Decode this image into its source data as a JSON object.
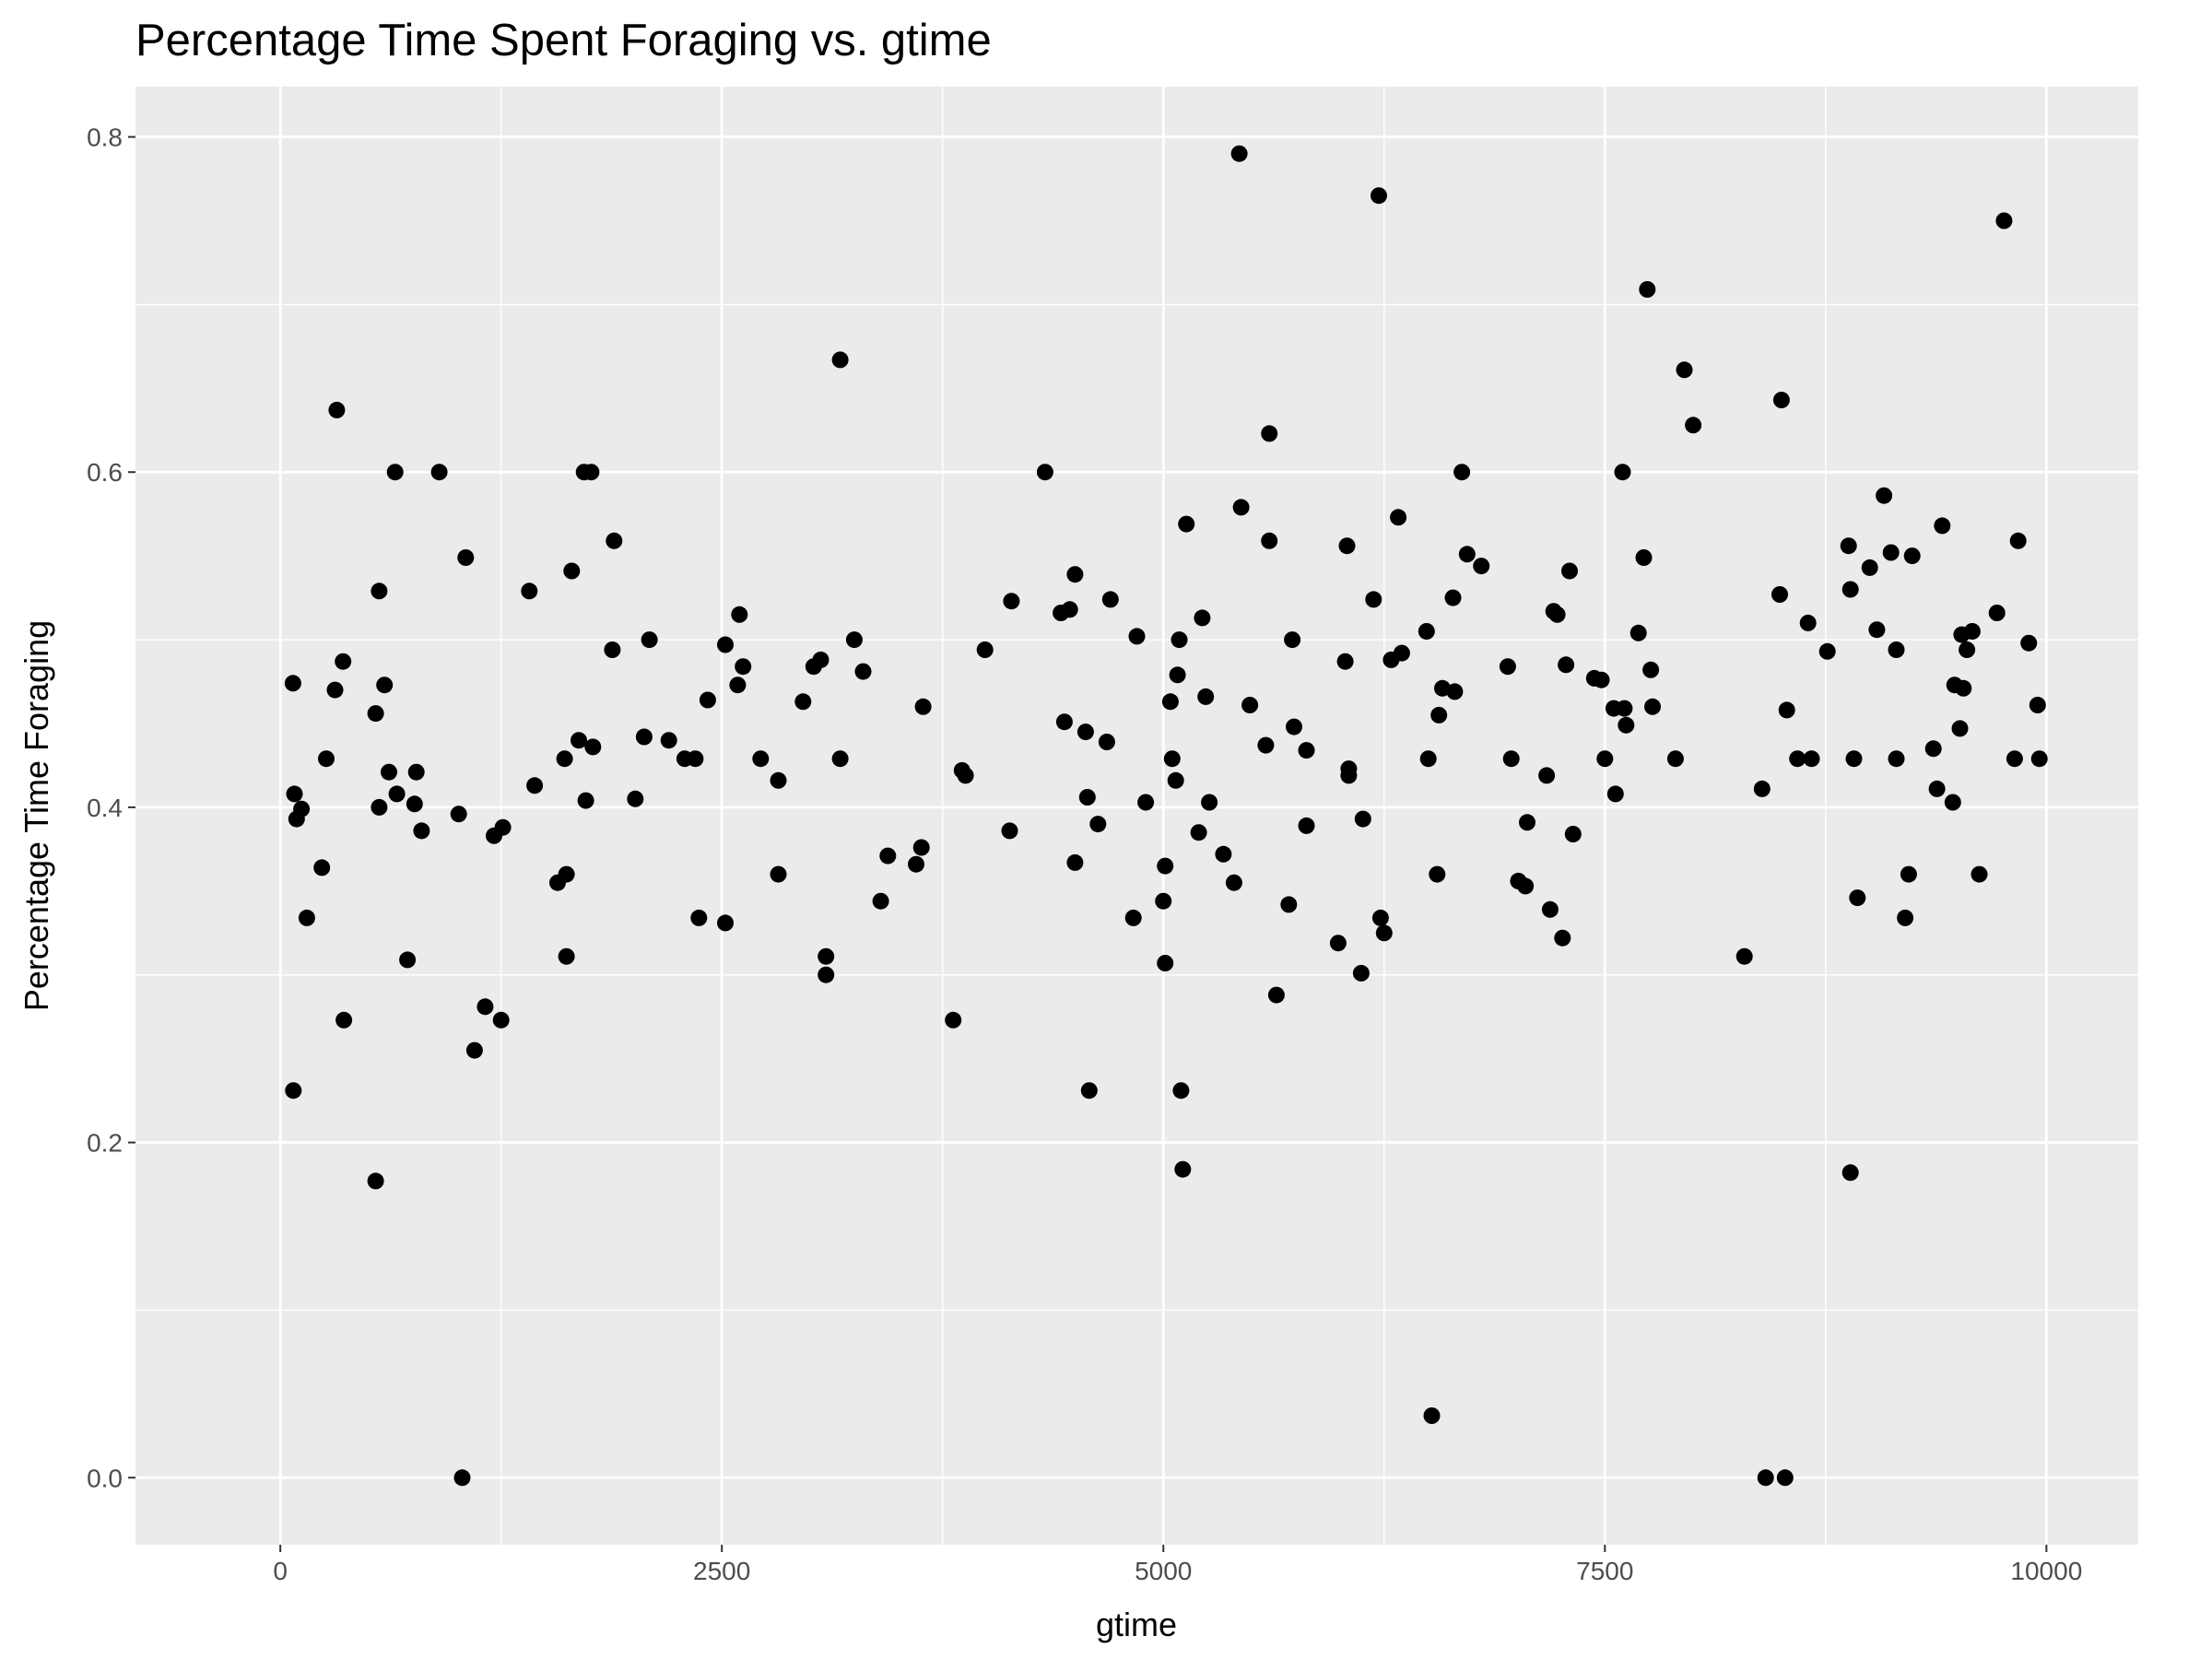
{
  "chart_data": {
    "type": "scatter",
    "title": "Percentage Time Spent Foraging vs. gtime",
    "xlabel": "gtime",
    "ylabel": "Percentage Time Foraging",
    "xlim": [
      -820,
      10520
    ],
    "ylim": [
      -0.04,
      0.83
    ],
    "x_ticks": [
      0,
      2500,
      5000,
      7500,
      10000
    ],
    "x_tick_labels": [
      "0",
      "2500",
      "5000",
      "7500",
      "10000"
    ],
    "y_ticks": [
      0.0,
      0.2,
      0.4,
      0.6,
      0.8
    ],
    "y_tick_labels": [
      "0.0",
      "0.2",
      "0.4",
      "0.6",
      "0.8"
    ],
    "grid": true,
    "panel_color": "#ebebeb",
    "grid_color": "#ffffff",
    "point_color": "#000000",
    "points": [
      [
        72,
        0.474
      ],
      [
        80,
        0.408
      ],
      [
        92,
        0.393
      ],
      [
        120,
        0.399
      ],
      [
        150,
        0.334
      ],
      [
        74,
        0.231
      ],
      [
        235,
        0.364
      ],
      [
        260,
        0.429
      ],
      [
        310,
        0.47
      ],
      [
        320,
        0.637
      ],
      [
        355,
        0.487
      ],
      [
        360,
        0.273
      ],
      [
        540,
        0.456
      ],
      [
        560,
        0.529
      ],
      [
        560,
        0.4
      ],
      [
        590,
        0.473
      ],
      [
        615,
        0.421
      ],
      [
        650,
        0.6
      ],
      [
        660,
        0.408
      ],
      [
        720,
        0.309
      ],
      [
        760,
        0.402
      ],
      [
        770,
        0.421
      ],
      [
        800,
        0.386
      ],
      [
        540,
        0.177
      ],
      [
        900,
        0.6
      ],
      [
        1010,
        0.396
      ],
      [
        1050,
        0.549
      ],
      [
        1100,
        0.255
      ],
      [
        1160,
        0.281
      ],
      [
        1210,
        0.383
      ],
      [
        1260,
        0.388
      ],
      [
        1250,
        0.273
      ],
      [
        1030,
        0.0
      ],
      [
        1410,
        0.529
      ],
      [
        1440,
        0.413
      ],
      [
        1570,
        0.355
      ],
      [
        1610,
        0.429
      ],
      [
        1620,
        0.36
      ],
      [
        1620,
        0.311
      ],
      [
        1650,
        0.541
      ],
      [
        1690,
        0.44
      ],
      [
        1720,
        0.6
      ],
      [
        1760,
        0.6
      ],
      [
        1730,
        0.404
      ],
      [
        1770,
        0.436
      ],
      [
        1880,
        0.494
      ],
      [
        1890,
        0.559
      ],
      [
        2010,
        0.405
      ],
      [
        2060,
        0.442
      ],
      [
        2090,
        0.5
      ],
      [
        2200,
        0.44
      ],
      [
        2290,
        0.429
      ],
      [
        2350,
        0.429
      ],
      [
        2370,
        0.334
      ],
      [
        2420,
        0.464
      ],
      [
        2520,
        0.497
      ],
      [
        2520,
        0.331
      ],
      [
        2590,
        0.473
      ],
      [
        2600,
        0.515
      ],
      [
        2620,
        0.484
      ],
      [
        2720,
        0.429
      ],
      [
        2820,
        0.416
      ],
      [
        2820,
        0.36
      ],
      [
        2960,
        0.463
      ],
      [
        3020,
        0.484
      ],
      [
        3060,
        0.488
      ],
      [
        3090,
        0.311
      ],
      [
        3090,
        0.3
      ],
      [
        3170,
        0.429
      ],
      [
        3170,
        0.667
      ],
      [
        3250,
        0.5
      ],
      [
        3300,
        0.481
      ],
      [
        3400,
        0.344
      ],
      [
        3440,
        0.371
      ],
      [
        3600,
        0.366
      ],
      [
        3630,
        0.376
      ],
      [
        3640,
        0.46
      ],
      [
        3810,
        0.273
      ],
      [
        3860,
        0.422
      ],
      [
        3880,
        0.419
      ],
      [
        3990,
        0.494
      ],
      [
        4130,
        0.386
      ],
      [
        4140,
        0.523
      ],
      [
        4330,
        0.6
      ],
      [
        4420,
        0.516
      ],
      [
        4440,
        0.451
      ],
      [
        4470,
        0.518
      ],
      [
        4500,
        0.539
      ],
      [
        4500,
        0.367
      ],
      [
        4560,
        0.445
      ],
      [
        4570,
        0.406
      ],
      [
        4580,
        0.231
      ],
      [
        4630,
        0.39
      ],
      [
        4680,
        0.439
      ],
      [
        4700,
        0.524
      ],
      [
        4830,
        0.334
      ],
      [
        4850,
        0.502
      ],
      [
        4900,
        0.403
      ],
      [
        5000,
        0.344
      ],
      [
        5010,
        0.365
      ],
      [
        5010,
        0.307
      ],
      [
        5040,
        0.463
      ],
      [
        5050,
        0.429
      ],
      [
        5070,
        0.416
      ],
      [
        5080,
        0.479
      ],
      [
        5090,
        0.5
      ],
      [
        5100,
        0.231
      ],
      [
        5110,
        0.184
      ],
      [
        5130,
        0.569
      ],
      [
        5200,
        0.385
      ],
      [
        5220,
        0.513
      ],
      [
        5240,
        0.466
      ],
      [
        5260,
        0.403
      ],
      [
        5340,
        0.372
      ],
      [
        5400,
        0.355
      ],
      [
        5430,
        0.79
      ],
      [
        5440,
        0.579
      ],
      [
        5490,
        0.461
      ],
      [
        5580,
        0.437
      ],
      [
        5600,
        0.559
      ],
      [
        5600,
        0.623
      ],
      [
        5640,
        0.288
      ],
      [
        5710,
        0.342
      ],
      [
        5730,
        0.5
      ],
      [
        5740,
        0.448
      ],
      [
        5810,
        0.389
      ],
      [
        5810,
        0.434
      ],
      [
        5990,
        0.319
      ],
      [
        6030,
        0.487
      ],
      [
        6040,
        0.556
      ],
      [
        6050,
        0.423
      ],
      [
        6050,
        0.419
      ],
      [
        6120,
        0.301
      ],
      [
        6130,
        0.393
      ],
      [
        6190,
        0.524
      ],
      [
        6220,
        0.765
      ],
      [
        6230,
        0.334
      ],
      [
        6250,
        0.325
      ],
      [
        6290,
        0.488
      ],
      [
        6330,
        0.573
      ],
      [
        6350,
        0.492
      ],
      [
        6490,
        0.505
      ],
      [
        6500,
        0.429
      ],
      [
        6520,
        0.037
      ],
      [
        6550,
        0.36
      ],
      [
        6560,
        0.455
      ],
      [
        6580,
        0.471
      ],
      [
        6640,
        0.525
      ],
      [
        6650,
        0.469
      ],
      [
        6690,
        0.6
      ],
      [
        6720,
        0.551
      ],
      [
        6800,
        0.544
      ],
      [
        6950,
        0.484
      ],
      [
        6970,
        0.429
      ],
      [
        7010,
        0.356
      ],
      [
        7060,
        0.391
      ],
      [
        7050,
        0.353
      ],
      [
        7170,
        0.419
      ],
      [
        7190,
        0.339
      ],
      [
        7210,
        0.517
      ],
      [
        7230,
        0.515
      ],
      [
        7260,
        0.322
      ],
      [
        7280,
        0.485
      ],
      [
        7300,
        0.541
      ],
      [
        7320,
        0.384
      ],
      [
        7440,
        0.477
      ],
      [
        7480,
        0.476
      ],
      [
        7500,
        0.429
      ],
      [
        7550,
        0.459
      ],
      [
        7560,
        0.408
      ],
      [
        7600,
        0.6
      ],
      [
        7610,
        0.459
      ],
      [
        7620,
        0.449
      ],
      [
        7690,
        0.504
      ],
      [
        7720,
        0.549
      ],
      [
        7740,
        0.709
      ],
      [
        7760,
        0.482
      ],
      [
        7770,
        0.46
      ],
      [
        7900,
        0.429
      ],
      [
        7950,
        0.661
      ],
      [
        8000,
        0.628
      ],
      [
        8290,
        0.311
      ],
      [
        8390,
        0.411
      ],
      [
        8410,
        0.0
      ],
      [
        8490,
        0.527
      ],
      [
        8500,
        0.643
      ],
      [
        8520,
        0.0
      ],
      [
        8530,
        0.458
      ],
      [
        8590,
        0.429
      ],
      [
        8650,
        0.51
      ],
      [
        8670,
        0.429
      ],
      [
        8760,
        0.493
      ],
      [
        8880,
        0.556
      ],
      [
        8890,
        0.53
      ],
      [
        8890,
        0.182
      ],
      [
        8910,
        0.429
      ],
      [
        8930,
        0.346
      ],
      [
        9000,
        0.543
      ],
      [
        9040,
        0.506
      ],
      [
        9080,
        0.586
      ],
      [
        9120,
        0.552
      ],
      [
        9150,
        0.494
      ],
      [
        9150,
        0.429
      ],
      [
        9200,
        0.334
      ],
      [
        9220,
        0.36
      ],
      [
        9240,
        0.55
      ],
      [
        9360,
        0.435
      ],
      [
        9380,
        0.411
      ],
      [
        9410,
        0.568
      ],
      [
        9470,
        0.403
      ],
      [
        9480,
        0.473
      ],
      [
        9510,
        0.447
      ],
      [
        9520,
        0.503
      ],
      [
        9530,
        0.471
      ],
      [
        9550,
        0.494
      ],
      [
        9580,
        0.505
      ],
      [
        9620,
        0.36
      ],
      [
        9720,
        0.516
      ],
      [
        9760,
        0.75
      ],
      [
        9820,
        0.429
      ],
      [
        9840,
        0.559
      ],
      [
        9900,
        0.498
      ],
      [
        9950,
        0.461
      ],
      [
        9960,
        0.429
      ]
    ]
  }
}
